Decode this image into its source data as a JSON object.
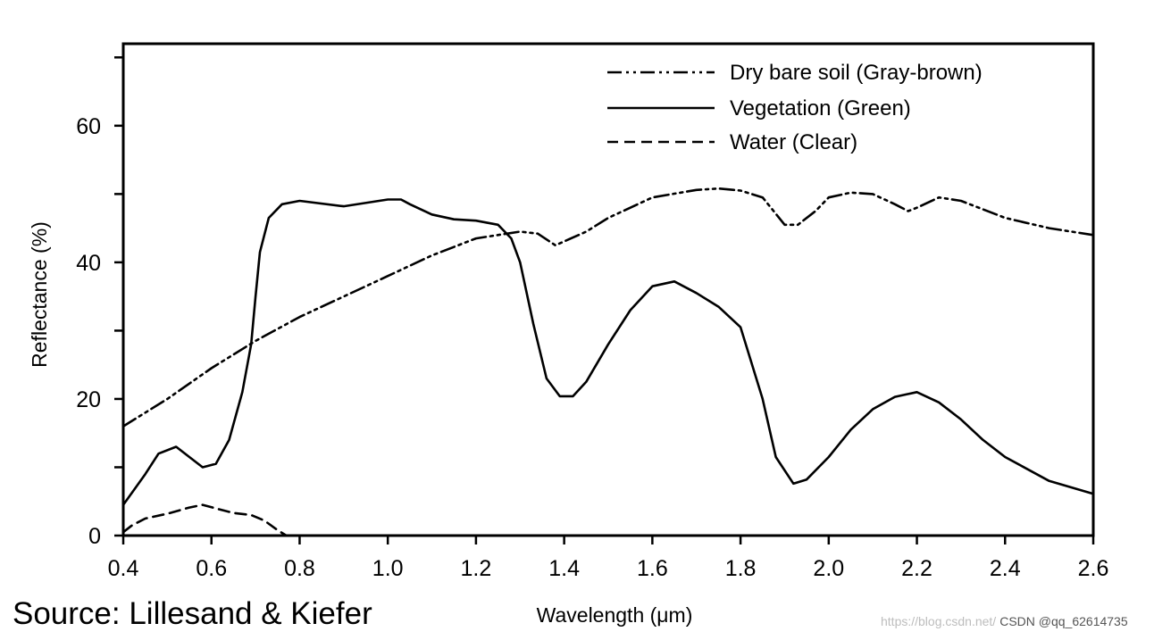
{
  "chart_data": {
    "type": "line",
    "title": "",
    "xlabel": "Wavelength (μm)",
    "ylabel": "Reflectance (%)",
    "xlim": [
      0.4,
      2.6
    ],
    "ylim": [
      0,
      72
    ],
    "x_ticks": [
      "0.4",
      "0.6",
      "0.8",
      "1.0",
      "1.2",
      "1.4",
      "1.6",
      "1.8",
      "2.0",
      "2.2",
      "2.4",
      "2.6"
    ],
    "y_ticks": [
      "0",
      "20",
      "40",
      "60"
    ],
    "grid": false,
    "legend_position": "top-right",
    "series": [
      {
        "name": "Dry bare soil (Gray-brown)",
        "style": "dash-dot-dot",
        "color": "#000000",
        "x": [
          0.4,
          0.5,
          0.6,
          0.7,
          0.8,
          0.9,
          1.0,
          1.1,
          1.2,
          1.3,
          1.34,
          1.38,
          1.45,
          1.5,
          1.6,
          1.7,
          1.75,
          1.8,
          1.85,
          1.9,
          1.93,
          1.97,
          2.0,
          2.05,
          2.1,
          2.15,
          2.18,
          2.2,
          2.25,
          2.3,
          2.4,
          2.5,
          2.6
        ],
        "y": [
          16,
          20,
          24.5,
          28.5,
          32,
          35,
          38,
          41,
          43.5,
          44.5,
          44.2,
          42.5,
          44.5,
          46.5,
          49.5,
          50.6,
          50.8,
          50.5,
          49.5,
          45.5,
          45.5,
          47.5,
          49.5,
          50.2,
          50,
          48.5,
          47.5,
          48,
          49.5,
          49,
          46.5,
          45,
          44
        ]
      },
      {
        "name": "Vegetation (Green)",
        "style": "solid",
        "color": "#000000",
        "x": [
          0.4,
          0.45,
          0.48,
          0.52,
          0.55,
          0.58,
          0.61,
          0.64,
          0.67,
          0.69,
          0.7,
          0.71,
          0.73,
          0.76,
          0.8,
          0.9,
          1.0,
          1.03,
          1.05,
          1.1,
          1.15,
          1.2,
          1.25,
          1.28,
          1.3,
          1.33,
          1.36,
          1.39,
          1.42,
          1.45,
          1.5,
          1.55,
          1.6,
          1.65,
          1.7,
          1.75,
          1.8,
          1.85,
          1.88,
          1.92,
          1.95,
          2.0,
          2.05,
          2.1,
          2.15,
          2.2,
          2.25,
          2.3,
          2.35,
          2.4,
          2.5,
          2.6
        ],
        "y": [
          4.5,
          9,
          12,
          13,
          11.5,
          10,
          10.5,
          14,
          21,
          28,
          35,
          41.5,
          46.5,
          48.5,
          49,
          48.2,
          49.2,
          49.2,
          48.5,
          47,
          46.3,
          46.1,
          45.5,
          43.5,
          40,
          31,
          23,
          20.4,
          20.4,
          22.5,
          28,
          33,
          36.5,
          37.2,
          35.5,
          33.5,
          30.5,
          20,
          11.5,
          7.6,
          8.2,
          11.5,
          15.5,
          18.5,
          20.3,
          21,
          19.5,
          17,
          14,
          11.5,
          8,
          6.1
        ]
      },
      {
        "name": "Water (Clear)",
        "style": "dashed",
        "color": "#000000",
        "x": [
          0.4,
          0.42,
          0.45,
          0.5,
          0.55,
          0.58,
          0.62,
          0.65,
          0.69,
          0.72,
          0.75,
          0.77
        ],
        "y": [
          0.5,
          1.5,
          2.5,
          3.2,
          4.1,
          4.5,
          3.8,
          3.3,
          3.0,
          2.2,
          0.8,
          0
        ]
      }
    ]
  },
  "source": "Source: Lillesand & Kiefer",
  "watermark": {
    "url": "https://blog.csdn.net/",
    "brand": "CSDN @qq_62614735"
  }
}
